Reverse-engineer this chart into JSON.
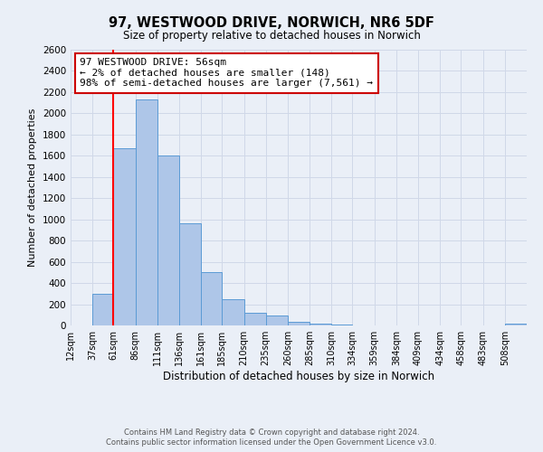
{
  "title": "97, WESTWOOD DRIVE, NORWICH, NR6 5DF",
  "subtitle": "Size of property relative to detached houses in Norwich",
  "xlabel": "Distribution of detached houses by size in Norwich",
  "ylabel": "Number of detached properties",
  "bin_labels": [
    "12sqm",
    "37sqm",
    "61sqm",
    "86sqm",
    "111sqm",
    "136sqm",
    "161sqm",
    "185sqm",
    "210sqm",
    "235sqm",
    "260sqm",
    "285sqm",
    "310sqm",
    "334sqm",
    "359sqm",
    "384sqm",
    "409sqm",
    "434sqm",
    "458sqm",
    "483sqm",
    "508sqm"
  ],
  "bin_edges": [
    12,
    37,
    61,
    86,
    111,
    136,
    161,
    185,
    210,
    235,
    260,
    285,
    310,
    334,
    359,
    384,
    409,
    434,
    458,
    483,
    508
  ],
  "bar_heights": [
    0,
    300,
    1670,
    2130,
    1600,
    960,
    505,
    250,
    120,
    95,
    30,
    15,
    8,
    3,
    2,
    1,
    0,
    0,
    0,
    0,
    15
  ],
  "bar_color": "#aec6e8",
  "bar_edge_color": "#5b9bd5",
  "grid_color": "#d0d8e8",
  "property_line_x": 61,
  "ylim": [
    0,
    2600
  ],
  "yticks": [
    0,
    200,
    400,
    600,
    800,
    1000,
    1200,
    1400,
    1600,
    1800,
    2000,
    2200,
    2400,
    2600
  ],
  "annotation_title": "97 WESTWOOD DRIVE: 56sqm",
  "annotation_line1": "← 2% of detached houses are smaller (148)",
  "annotation_line2": "98% of semi-detached houses are larger (7,561) →",
  "annotation_box_color": "#ffffff",
  "annotation_box_edge": "#cc0000",
  "footer_line1": "Contains HM Land Registry data © Crown copyright and database right 2024.",
  "footer_line2": "Contains public sector information licensed under the Open Government Licence v3.0.",
  "bg_color": "#eaeff7"
}
